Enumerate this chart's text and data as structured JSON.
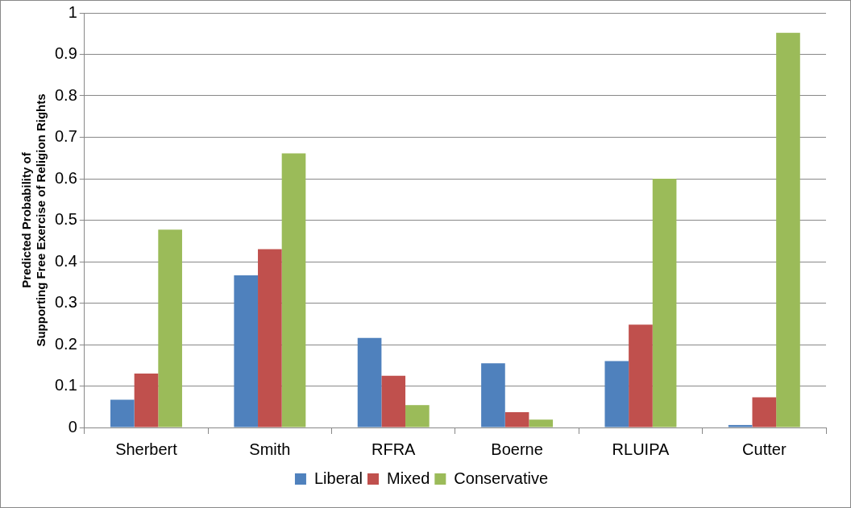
{
  "chart_data": {
    "type": "bar",
    "ylabel": "Predicted Probability of\nSupporting Free Exercise of Religion Rights",
    "categories": [
      "Sherbert",
      "Smith",
      "RFRA",
      "Boerne",
      "RLUIPA",
      "Cutter"
    ],
    "series": [
      {
        "name": "Liberal",
        "color": "#4f81bd",
        "values": [
          0.067,
          0.367,
          0.216,
          0.155,
          0.16,
          0.006
        ]
      },
      {
        "name": "Mixed",
        "color": "#c0504d",
        "values": [
          0.13,
          0.43,
          0.125,
          0.037,
          0.248,
          0.073
        ]
      },
      {
        "name": "Conservative",
        "color": "#9bbb59",
        "values": [
          0.477,
          0.661,
          0.054,
          0.019,
          0.6,
          0.952
        ]
      }
    ],
    "ylim": [
      0,
      1
    ],
    "yticks": [
      0,
      0.1,
      0.2,
      0.3,
      0.4,
      0.5,
      0.6,
      0.7,
      0.8,
      0.9,
      1
    ],
    "grid": "y",
    "legend": "bottom"
  }
}
